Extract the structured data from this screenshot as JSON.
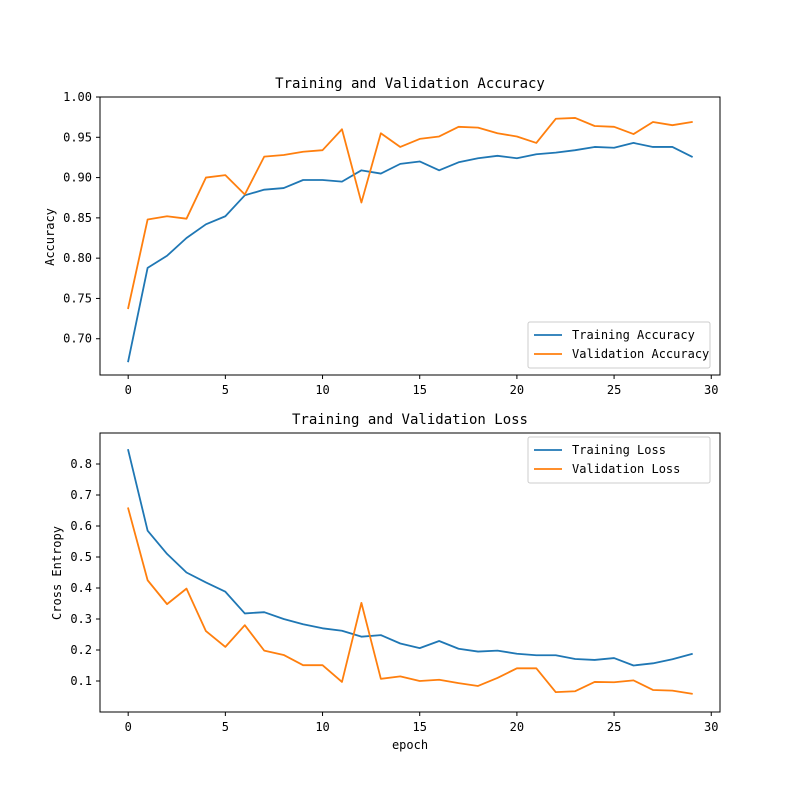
{
  "chart_data": [
    {
      "type": "line",
      "title": "Training and Validation Accuracy",
      "xlabel": "",
      "ylabel": "Accuracy",
      "xlim": [
        -1.45,
        30.45
      ],
      "ylim": [
        0.655,
        1.0
      ],
      "xticks": [
        0,
        5,
        10,
        15,
        20,
        25,
        30
      ],
      "yticks": [
        0.7,
        0.75,
        0.8,
        0.85,
        0.9,
        0.95,
        1.0
      ],
      "ytick_decimals": 2,
      "legend_position": "lower-right",
      "x": [
        0,
        1,
        2,
        3,
        4,
        5,
        6,
        7,
        8,
        9,
        10,
        11,
        12,
        13,
        14,
        15,
        16,
        17,
        18,
        19,
        20,
        21,
        22,
        23,
        24,
        25,
        26,
        27,
        28,
        29
      ],
      "series": [
        {
          "name": "Training Accuracy",
          "color": "#1f77b4",
          "values": [
            0.672,
            0.788,
            0.803,
            0.825,
            0.842,
            0.852,
            0.878,
            0.885,
            0.887,
            0.897,
            0.897,
            0.895,
            0.909,
            0.905,
            0.917,
            0.92,
            0.909,
            0.919,
            0.924,
            0.927,
            0.924,
            0.929,
            0.931,
            0.934,
            0.938,
            0.937,
            0.943,
            0.938,
            0.938,
            0.926
          ]
        },
        {
          "name": "Validation Accuracy",
          "color": "#ff7f0e",
          "values": [
            0.738,
            0.848,
            0.852,
            0.849,
            0.9,
            0.903,
            0.879,
            0.926,
            0.928,
            0.932,
            0.934,
            0.96,
            0.869,
            0.955,
            0.938,
            0.948,
            0.951,
            0.963,
            0.962,
            0.955,
            0.951,
            0.943,
            0.973,
            0.974,
            0.964,
            0.963,
            0.954,
            0.969,
            0.965,
            0.969
          ]
        }
      ]
    },
    {
      "type": "line",
      "title": "Training and Validation Loss",
      "xlabel": "epoch",
      "ylabel": "Cross Entropy",
      "xlim": [
        -1.45,
        30.45
      ],
      "ylim": [
        0.0,
        0.9
      ],
      "xticks": [
        0,
        5,
        10,
        15,
        20,
        25,
        30
      ],
      "yticks": [
        0.1,
        0.2,
        0.3,
        0.4,
        0.5,
        0.6,
        0.7,
        0.8
      ],
      "ytick_decimals": 1,
      "legend_position": "upper-right",
      "x": [
        0,
        1,
        2,
        3,
        4,
        5,
        6,
        7,
        8,
        9,
        10,
        11,
        12,
        13,
        14,
        15,
        16,
        17,
        18,
        19,
        20,
        21,
        22,
        23,
        24,
        25,
        26,
        27,
        28,
        29
      ],
      "series": [
        {
          "name": "Training Loss",
          "color": "#1f77b4",
          "values": [
            0.845,
            0.585,
            0.51,
            0.45,
            0.418,
            0.388,
            0.318,
            0.322,
            0.3,
            0.283,
            0.27,
            0.262,
            0.243,
            0.248,
            0.221,
            0.206,
            0.229,
            0.204,
            0.195,
            0.198,
            0.188,
            0.183,
            0.183,
            0.171,
            0.168,
            0.174,
            0.15,
            0.157,
            0.17,
            0.187
          ]
        },
        {
          "name": "Validation Loss",
          "color": "#ff7f0e",
          "values": [
            0.657,
            0.425,
            0.348,
            0.398,
            0.261,
            0.21,
            0.28,
            0.198,
            0.184,
            0.151,
            0.151,
            0.097,
            0.352,
            0.107,
            0.115,
            0.1,
            0.104,
            0.093,
            0.084,
            0.11,
            0.141,
            0.141,
            0.064,
            0.067,
            0.097,
            0.096,
            0.102,
            0.071,
            0.069,
            0.059
          ]
        }
      ]
    }
  ]
}
